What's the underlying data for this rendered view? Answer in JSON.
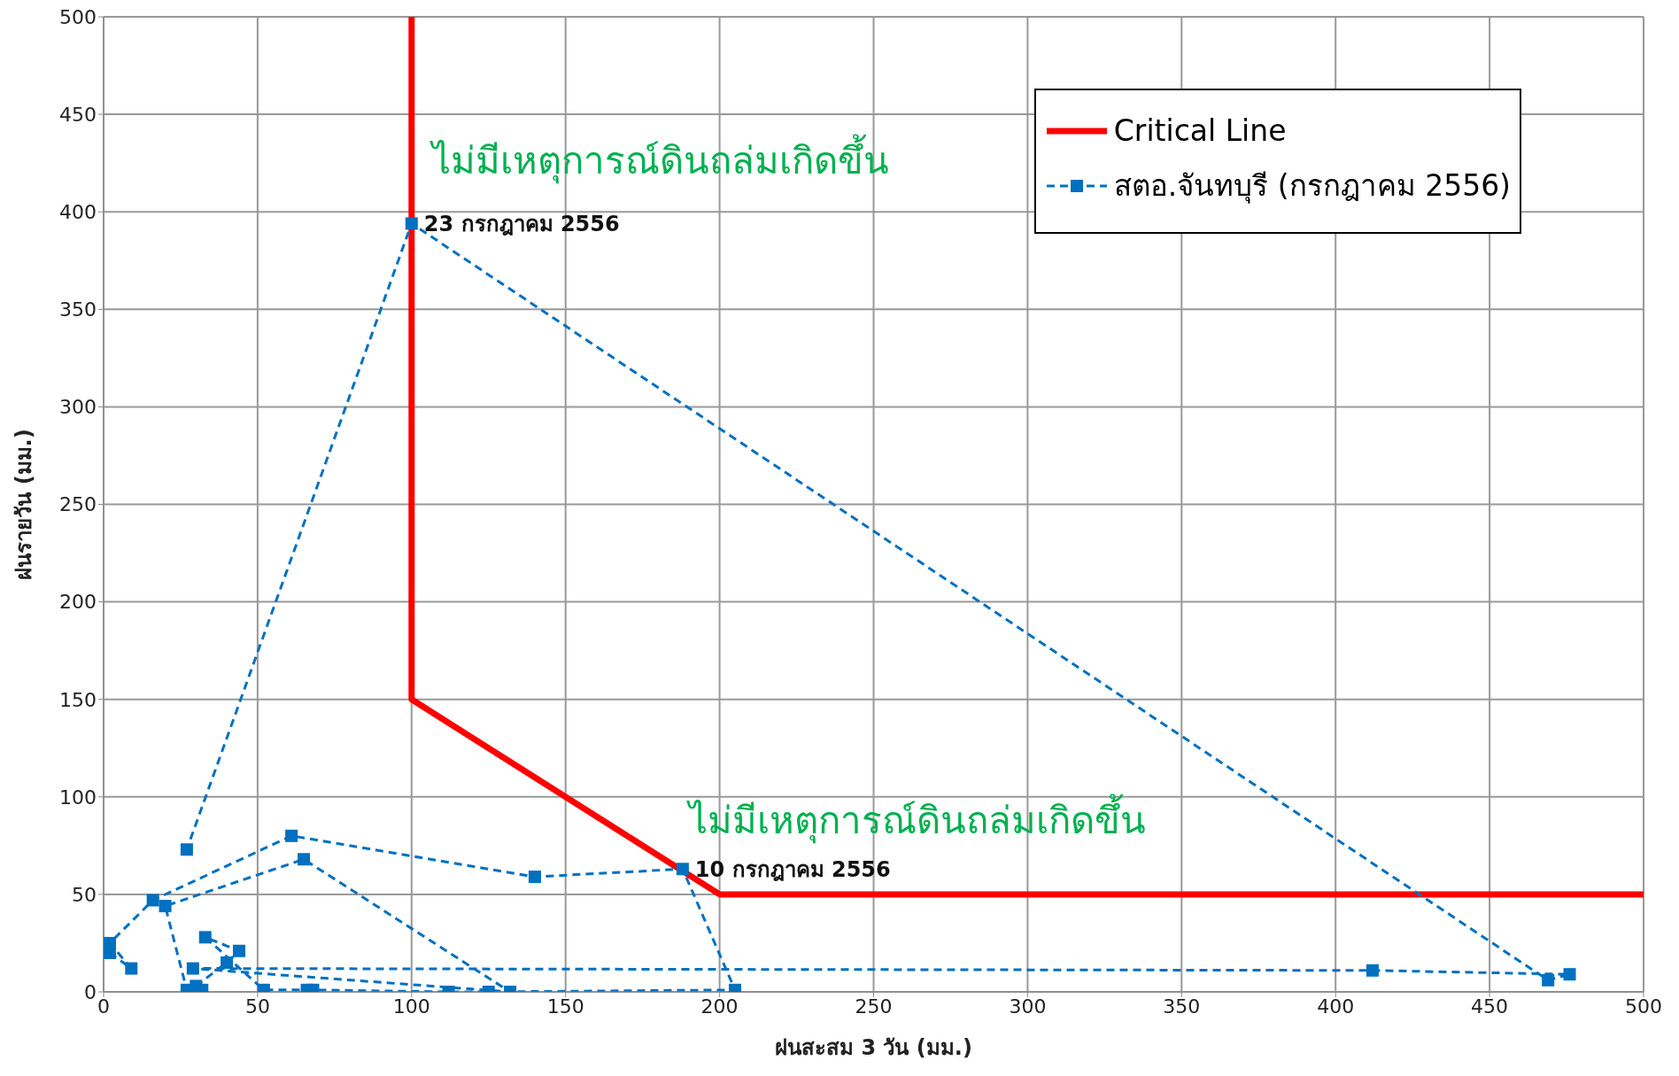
{
  "chart_data": {
    "type": "line",
    "xlabel": "ฝนสะสม 3 วัน (มม.)",
    "ylabel": "ฝนรายวัน (มม.)",
    "xlim": [
      0,
      500
    ],
    "xticks": [
      0,
      50,
      100,
      150,
      200,
      250,
      300,
      350,
      400,
      450,
      500
    ],
    "ylim": [
      0,
      500
    ],
    "yticks": [
      0,
      50,
      100,
      150,
      200,
      250,
      300,
      350,
      400,
      450,
      500
    ],
    "grid": true,
    "legend": "top right",
    "series": [
      {
        "name": "Critical Line",
        "color": "#ff0000",
        "marker": "none",
        "line_style": "solid",
        "x": [
          100,
          100,
          200,
          500
        ],
        "values": [
          500,
          150,
          50,
          50
        ]
      },
      {
        "name": "สตอ.จันทบุรี (กรกฎาคม 2556)",
        "color": "#0070c0",
        "marker": "square",
        "line_style": "dashed",
        "x": [
          2,
          9,
          2,
          16,
          61,
          140,
          188,
          205,
          125,
          112,
          68,
          66,
          52,
          33,
          44,
          40,
          30,
          32,
          27,
          20,
          65,
          132,
          29,
          412,
          476,
          469,
          100,
          27
        ],
        "values": [
          20,
          12,
          25,
          47,
          80,
          59,
          63,
          1,
          0,
          0,
          1,
          1,
          1,
          28,
          21,
          15,
          3,
          1,
          1,
          44,
          68,
          0,
          12,
          11,
          9,
          6,
          394,
          73
        ]
      }
    ],
    "annotations": [
      "ไม่มีเหตุการณ์ดินถล่มเกิดขึ้น",
      "ไม่มีเหตุการณ์ดินถล่มเกิดขึ้น",
      {
        "text": "23 กรกฎาคม 2556",
        "x": 100,
        "y": 394
      },
      {
        "text": "10 กรกฎาคม 2556",
        "x": 188,
        "y": 63
      }
    ]
  }
}
